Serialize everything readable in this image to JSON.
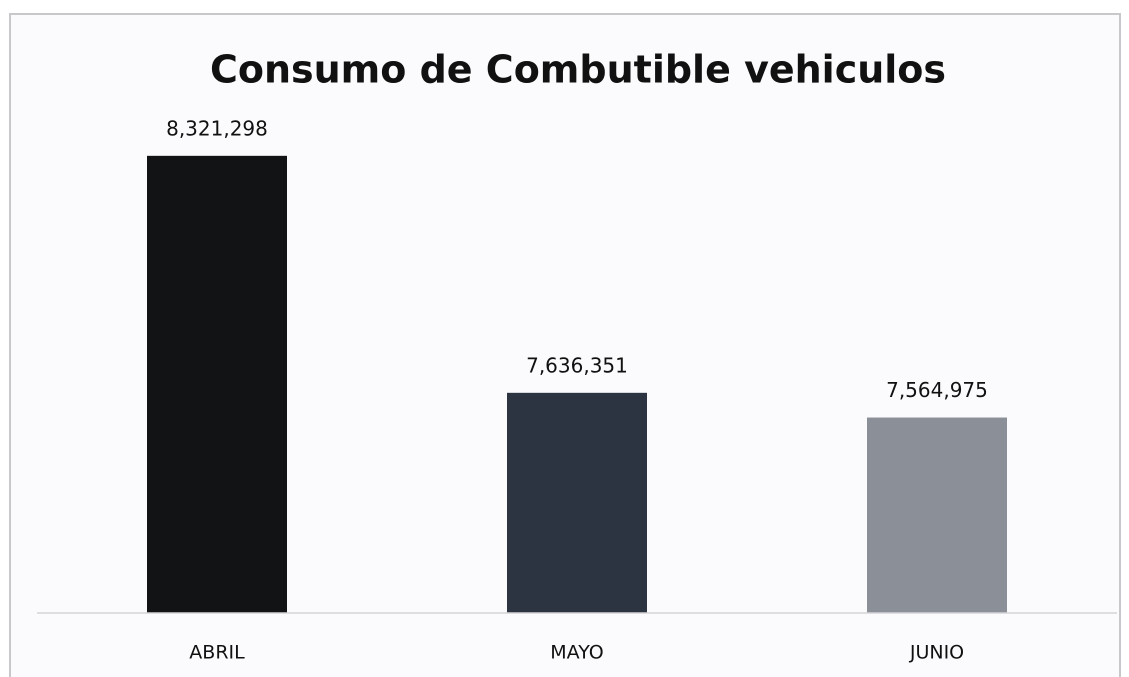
{
  "chart_data": {
    "type": "bar",
    "title": "Consumo de Combutible vehiculos",
    "categories": [
      "ABRIL",
      "MAYO",
      "JUNIO"
    ],
    "values": [
      8321298,
      7636351,
      7564975
    ],
    "value_labels": [
      "8,321,298",
      "7,636,351",
      "7,564,975"
    ],
    "colors": [
      "#121314",
      "#2b3440",
      "#8b9098"
    ],
    "ylim": [
      7000000,
      8500000
    ]
  }
}
